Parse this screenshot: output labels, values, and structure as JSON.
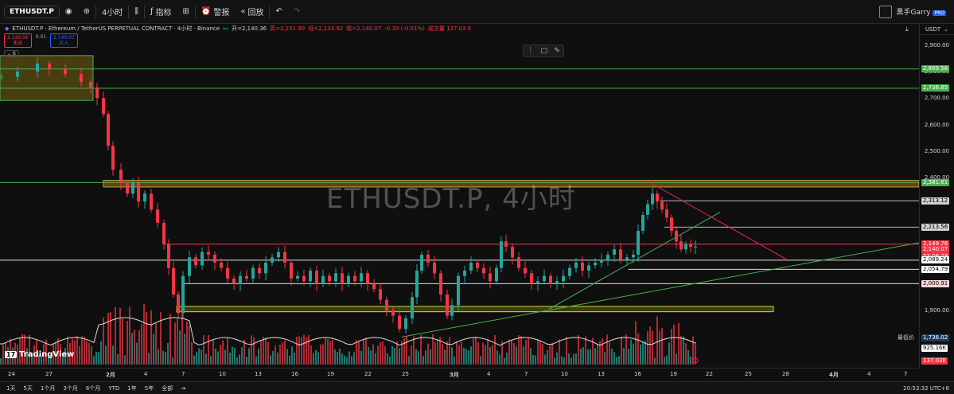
{
  "toolbar": {
    "symbol": "ETHUSDT.P",
    "interval": "4小时",
    "indicators": "指标",
    "alert": "警报",
    "replay": "回放",
    "user": "黑手Garry",
    "badge": "PRO"
  },
  "info": {
    "title": "ETHUSDT.P · Ethereum / TetherUS PERPETUAL CONTRACT · 4小时 · Binance",
    "open": "开=2,140.36",
    "high": "高=2,151.99",
    "low": "低=2,133.92",
    "close": "收=2,140.07",
    "change": "-0.30 (-0.01%)",
    "volume": "成交量 137.03 K"
  },
  "pricebox": {
    "sell_price": "2,140.06",
    "sell_label": "卖出",
    "spread": "0.01",
    "buy_price": "2,140.07",
    "buy_label": "买入",
    "collapse": "6"
  },
  "watermark": "ETHUSDT.P, 4小时",
  "axis": {
    "currency": "USDT",
    "ticks": [
      "2,900.00",
      "2,800.00",
      "2,700.00",
      "2,600.00",
      "2,500.00",
      "2,400.00",
      "1,900.00",
      "1,800.00"
    ],
    "levels": [
      {
        "text": "2,809.56",
        "bg": "#4caf50"
      },
      {
        "text": "2,736.85",
        "bg": "#4caf50"
      },
      {
        "text": "2,381.61",
        "bg": "#4caf50"
      },
      {
        "text": "2,313.12",
        "bg": "#cfcfcf"
      },
      {
        "text": "2,213.56",
        "bg": "#cfcfcf"
      },
      {
        "text": "2,149.76",
        "bg": "#f23645"
      },
      {
        "text": "2,140.07",
        "bg": "#f23645"
      },
      {
        "text": "03:06:28",
        "bg": "#f23645"
      },
      {
        "text": "2,089.24",
        "bg": "#ffffff"
      },
      {
        "text": "2,054.79",
        "bg": "#ffffff"
      },
      {
        "text": "2,000.91",
        "bg": "#f8d7da"
      }
    ],
    "lowest_label": "最低价",
    "lowest": "1,736.02",
    "vol1": "925.16K",
    "vol2": "137.03K"
  },
  "xaxis": [
    "24",
    "27",
    "2月",
    "4",
    "7",
    "10",
    "13",
    "16",
    "19",
    "22",
    "25",
    "3月",
    "4",
    "7",
    "10",
    "13",
    "16",
    "19",
    "22",
    "25",
    "28",
    "4月",
    "4",
    "7"
  ],
  "ranges": [
    "1天",
    "5天",
    "1个月",
    "3个月",
    "6个月",
    "YTD",
    "1年",
    "5年",
    "全部"
  ],
  "clock": "20:53:32 UTC+8",
  "brand": "TradingView",
  "colors": {
    "up": "#26a69a",
    "down": "#f23645",
    "support": "#4caf50"
  }
}
